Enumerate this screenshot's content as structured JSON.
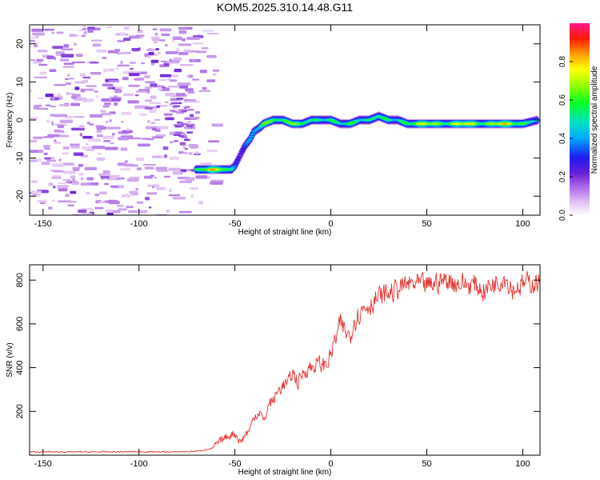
{
  "title": "KOM5.2025.310.14.48.G11",
  "chart_data": [
    {
      "type": "heatmap",
      "xlabel": "Height of straight line (km)",
      "ylabel": "Frequency (Hz)",
      "xlim": [
        -157,
        109
      ],
      "ylim": [
        -25,
        25
      ],
      "xticks": [
        "-150",
        "-100",
        "-50",
        "0",
        "50",
        "100"
      ],
      "xtick_values": [
        -150,
        -100,
        -50,
        0,
        50,
        100
      ],
      "yticks": [
        "-20",
        "-10",
        "0",
        "10",
        "20"
      ],
      "ytick_values": [
        -20,
        -10,
        0,
        10,
        20
      ],
      "colorbar": {
        "label": "Normalized spectral amplitude",
        "range": [
          0,
          1
        ],
        "ticks": [
          "0.0",
          "0.2",
          "0.4",
          "0.6",
          "0.8"
        ],
        "tick_values": [
          0.0,
          0.2,
          0.4,
          0.6,
          0.8
        ]
      },
      "track": {
        "x": [
          -70,
          -62,
          -55,
          -52,
          -50,
          -47,
          -45,
          -42,
          -40,
          -37,
          -35,
          -30,
          -25,
          -20,
          -15,
          -10,
          -5,
          0,
          5,
          10,
          15,
          20,
          25,
          30,
          35,
          40,
          50,
          60,
          70,
          80,
          90,
          100,
          108
        ],
        "y": [
          -13,
          -13,
          -13,
          -13,
          -12,
          -9,
          -7,
          -5,
          -3,
          -2,
          -1,
          0,
          0,
          -1,
          -1,
          0,
          0,
          0,
          -1,
          -1,
          0,
          0,
          1,
          0,
          0,
          -1,
          -1,
          -1,
          -1,
          -1,
          -1,
          -1,
          0
        ],
        "intensity": [
          0.5,
          0.85,
          0.7,
          0.5,
          0.35,
          0.3,
          0.35,
          0.4,
          0.45,
          0.5,
          0.6,
          0.7,
          0.5,
          0.8,
          0.55,
          0.6,
          0.5,
          0.6,
          0.5,
          0.6,
          0.55,
          0.5,
          0.6,
          0.55,
          0.5,
          0.6,
          0.8,
          0.6,
          0.85,
          0.6,
          0.85,
          0.6,
          0.5
        ]
      }
    },
    {
      "type": "line",
      "xlabel": "Height of straight line (km)",
      "ylabel": "SNR (v/v)",
      "xlim": [
        -157,
        109
      ],
      "ylim": [
        0,
        870
      ],
      "xticks": [
        "-150",
        "-100",
        "-50",
        "0",
        "50",
        "100"
      ],
      "xtick_values": [
        -150,
        -100,
        -50,
        0,
        50,
        100
      ],
      "yticks": [
        "200",
        "400",
        "600",
        "800"
      ],
      "ytick_values": [
        200,
        400,
        600,
        800
      ],
      "series": [
        {
          "name": "SNR",
          "color": "#e8302c",
          "x": [
            -157,
            -140,
            -120,
            -100,
            -80,
            -70,
            -62,
            -58,
            -55,
            -52,
            -50,
            -47,
            -45,
            -42,
            -40,
            -37,
            -35,
            -32,
            -30,
            -27,
            -25,
            -22,
            -20,
            -17,
            -15,
            -12,
            -10,
            -7,
            -5,
            -2,
            0,
            2,
            5,
            8,
            10,
            12,
            15,
            18,
            20,
            25,
            30,
            35,
            40,
            45,
            50,
            55,
            60,
            65,
            70,
            75,
            80,
            85,
            88,
            90,
            95,
            100,
            105,
            109
          ],
          "y": [
            15,
            15,
            15,
            16,
            15,
            18,
            30,
            60,
            80,
            95,
            100,
            60,
            90,
            120,
            180,
            200,
            150,
            240,
            250,
            300,
            320,
            330,
            380,
            330,
            370,
            400,
            400,
            420,
            410,
            420,
            460,
            520,
            600,
            560,
            540,
            620,
            650,
            680,
            690,
            720,
            740,
            760,
            780,
            780,
            770,
            790,
            800,
            790,
            780,
            780,
            750,
            790,
            800,
            820,
            760,
            780,
            790,
            790
          ]
        }
      ]
    }
  ]
}
